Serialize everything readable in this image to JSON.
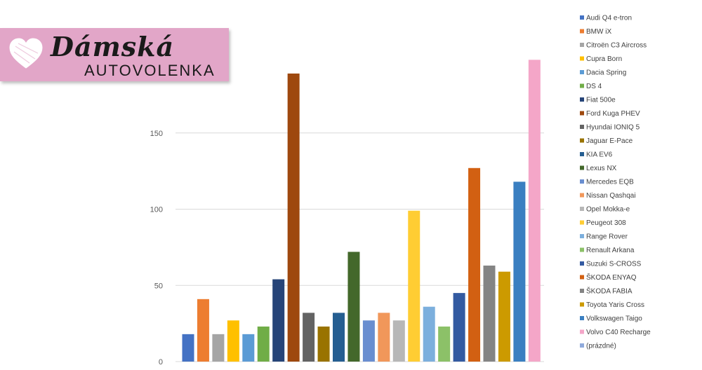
{
  "logo": {
    "title": "Dámská",
    "subtitle": "AUTOVOLENKA"
  },
  "chart_data": {
    "type": "bar",
    "title": "",
    "xlabel": "",
    "ylabel": "",
    "ylim": [
      0,
      200
    ],
    "yticks": [
      0,
      50,
      100,
      150
    ],
    "grid": true,
    "legend_position": "right",
    "series": [
      {
        "name": "Audi Q4 e-tron",
        "value": 18,
        "color": "#4472c4"
      },
      {
        "name": "BMW iX",
        "value": 41,
        "color": "#ed7d31"
      },
      {
        "name": "Citroën C3 Aircross",
        "value": 18,
        "color": "#a5a5a5"
      },
      {
        "name": "Cupra Born",
        "value": 27,
        "color": "#ffc000"
      },
      {
        "name": "Dacia Spring",
        "value": 18,
        "color": "#5b9bd5"
      },
      {
        "name": "DS 4",
        "value": 23,
        "color": "#70ad47"
      },
      {
        "name": "Fiat 500e",
        "value": 54,
        "color": "#264478"
      },
      {
        "name": "Ford Kuga PHEV",
        "value": 189,
        "color": "#9e480e"
      },
      {
        "name": "Hyundai IONIQ 5",
        "value": 32,
        "color": "#636363"
      },
      {
        "name": "Jaguar E-Pace",
        "value": 23,
        "color": "#997300"
      },
      {
        "name": "KIA EV6",
        "value": 32,
        "color": "#255e91"
      },
      {
        "name": "Lexus NX",
        "value": 72,
        "color": "#43682b"
      },
      {
        "name": "Mercedes EQB",
        "value": 27,
        "color": "#698ed0"
      },
      {
        "name": "Nissan Qashqai",
        "value": 32,
        "color": "#f1975a"
      },
      {
        "name": "Opel Mokka-e",
        "value": 27,
        "color": "#b7b7b7"
      },
      {
        "name": "Peugeot 308",
        "value": 99,
        "color": "#ffcd33"
      },
      {
        "name": "Range Rover",
        "value": 36,
        "color": "#7cafdd"
      },
      {
        "name": "Renault Arkana",
        "value": 23,
        "color": "#8cc168"
      },
      {
        "name": "Suzuki S-CROSS",
        "value": 45,
        "color": "#335aa1"
      },
      {
        "name": "ŠKODA ENYAQ",
        "value": 127,
        "color": "#d26012"
      },
      {
        "name": "ŠKODA FABIA",
        "value": 63,
        "color": "#848484"
      },
      {
        "name": "Toyota Yaris Cross",
        "value": 59,
        "color": "#cc9a00"
      },
      {
        "name": "Volkswagen Taigo",
        "value": 118,
        "color": "#3a7fc1"
      },
      {
        "name": "Volvo C40 Recharge",
        "value": 198,
        "color": "#f4a6c8"
      },
      {
        "name": "(prázdné)",
        "value": null,
        "color": "#8faadc"
      }
    ]
  }
}
